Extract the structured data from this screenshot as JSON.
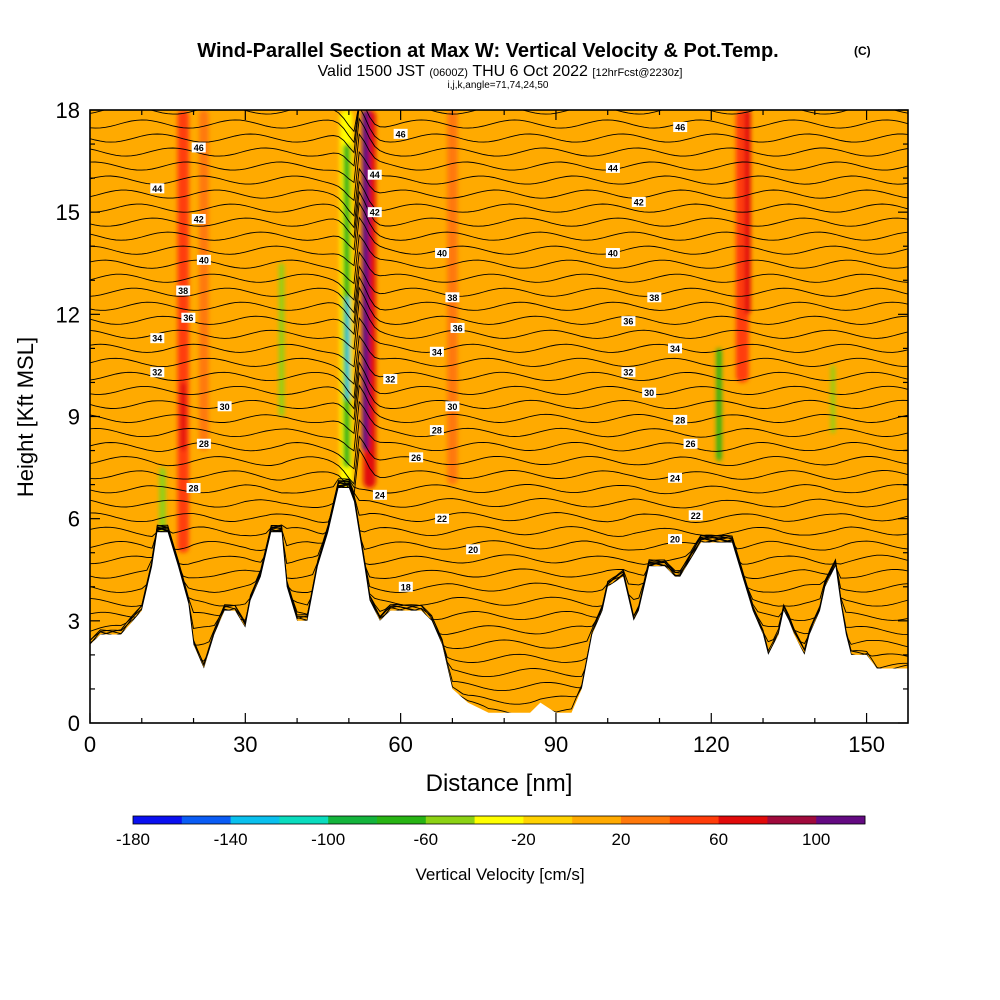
{
  "chart_data": {
    "type": "heatmap",
    "title_main": "Wind-Parallel Section at Max W: Vertical Velocity & Pot.Temp.",
    "title_mark": "(C)",
    "subtitle_valid": "Valid 1500 JST",
    "subtitle_utc": "(0600Z)",
    "subtitle_date": "THU 6 Oct 2022",
    "subtitle_fcst": "[12hrFcst@2230z]",
    "subtitle_ijk": "i,j,k,angle=71,74,24,50",
    "xlabel": "Distance [nm]",
    "ylabel": "Height [Kft MSL]",
    "xlim": [
      0,
      158
    ],
    "ylim": [
      0,
      18
    ],
    "xticks": [
      0,
      30,
      60,
      90,
      120,
      150
    ],
    "yticks": [
      0,
      3,
      6,
      9,
      12,
      15,
      18
    ],
    "colorbar": {
      "label": "Vertical Velocity [cm/s]",
      "min": -180,
      "max": 120,
      "step": 20,
      "tick_labels": [
        -180,
        -140,
        -100,
        -60,
        -20,
        20,
        60,
        100
      ],
      "colors": [
        "#0a10f0",
        "#0a5cf5",
        "#0ac0ee",
        "#0adcbe",
        "#14b43c",
        "#28b414",
        "#8cd214",
        "#ffff00",
        "#ffd200",
        "#ffaa00",
        "#ff780a",
        "#ff3c0a",
        "#e10a0a",
        "#a00a3c",
        "#640a82"
      ]
    },
    "background_value": 10,
    "terrain_kft": [
      [
        0,
        2.3
      ],
      [
        2,
        2.6
      ],
      [
        6,
        2.6
      ],
      [
        10,
        3.3
      ],
      [
        12,
        4.6
      ],
      [
        13,
        5.6
      ],
      [
        15,
        5.6
      ],
      [
        17,
        4.6
      ],
      [
        19,
        3.5
      ],
      [
        20,
        2.3
      ],
      [
        22,
        1.6
      ],
      [
        24,
        2.6
      ],
      [
        26,
        3.3
      ],
      [
        28,
        3.3
      ],
      [
        30,
        2.8
      ],
      [
        31,
        3.6
      ],
      [
        33,
        4.3
      ],
      [
        35,
        5.6
      ],
      [
        37,
        5.6
      ],
      [
        38,
        4.0
      ],
      [
        40,
        3.0
      ],
      [
        42,
        3.0
      ],
      [
        44,
        4.6
      ],
      [
        46,
        5.6
      ],
      [
        48,
        6.9
      ],
      [
        50,
        6.9
      ],
      [
        51,
        6.5
      ],
      [
        53,
        4.6
      ],
      [
        54,
        3.6
      ],
      [
        56,
        3.0
      ],
      [
        58,
        3.3
      ],
      [
        64,
        3.3
      ],
      [
        66,
        3.0
      ],
      [
        68,
        2.3
      ],
      [
        70,
        1.0
      ],
      [
        73,
        0.6
      ],
      [
        77,
        0.3
      ],
      [
        85,
        0.3
      ],
      [
        87,
        0.6
      ],
      [
        90,
        0.3
      ],
      [
        93,
        0.3
      ],
      [
        95,
        1.0
      ],
      [
        97,
        2.6
      ],
      [
        99,
        3.3
      ],
      [
        100,
        4.0
      ],
      [
        103,
        4.3
      ],
      [
        105,
        3.0
      ],
      [
        106,
        3.3
      ],
      [
        108,
        4.6
      ],
      [
        111,
        4.6
      ],
      [
        113,
        4.3
      ],
      [
        114,
        4.3
      ],
      [
        118,
        5.3
      ],
      [
        124,
        5.3
      ],
      [
        126,
        4.3
      ],
      [
        128,
        3.3
      ],
      [
        130,
        2.6
      ],
      [
        131,
        2.0
      ],
      [
        133,
        2.6
      ],
      [
        134,
        3.3
      ],
      [
        135,
        3.0
      ],
      [
        136,
        2.6
      ],
      [
        138,
        2.0
      ],
      [
        139,
        2.6
      ],
      [
        141,
        3.3
      ],
      [
        142,
        4.0
      ],
      [
        144,
        4.6
      ],
      [
        145,
        3.5
      ],
      [
        146,
        2.6
      ],
      [
        147,
        2.0
      ],
      [
        150,
        2.0
      ],
      [
        152,
        1.6
      ],
      [
        158,
        1.6
      ]
    ],
    "updraft_bands": [
      {
        "x": 18,
        "y_bottom": 5,
        "y_top": 18,
        "width_nm": 2.2,
        "value": 40
      },
      {
        "x": 18,
        "y_bottom": 8,
        "y_top": 10,
        "width_nm": 1.0,
        "value": 60
      },
      {
        "x": 22,
        "y_bottom": 8,
        "y_top": 18,
        "width_nm": 1.8,
        "value": 30
      },
      {
        "x": 126,
        "y_bottom": 10,
        "y_top": 18,
        "width_nm": 2.5,
        "value": 40
      },
      {
        "x": 127,
        "y_bottom": 12,
        "y_top": 18,
        "width_nm": 1.2,
        "value": 60
      },
      {
        "x": 70,
        "y_bottom": 7,
        "y_top": 18,
        "width_nm": 2.0,
        "value": 30
      },
      {
        "x": 54,
        "y_bottom": 6.9,
        "y_top": 18,
        "width_nm": 2.4,
        "value": 70
      },
      {
        "x": 53.2,
        "y_bottom": 8,
        "y_top": 18,
        "width_nm": 1.3,
        "value": 100
      },
      {
        "x": 53.6,
        "y_bottom": 10,
        "y_top": 18,
        "width_nm": 0.7,
        "value": 120
      }
    ],
    "downdraft_bands": [
      {
        "x": 49.5,
        "y_bottom": 6.9,
        "y_top": 18,
        "width_nm": 2.4,
        "value": -40
      },
      {
        "x": 49.6,
        "y_bottom": 7.5,
        "y_top": 17,
        "width_nm": 1.4,
        "value": -80
      },
      {
        "x": 49.8,
        "y_bottom": 9.5,
        "y_top": 12.5,
        "width_nm": 0.7,
        "value": -130
      },
      {
        "x": 37,
        "y_bottom": 9,
        "y_top": 13.5,
        "width_nm": 1.0,
        "value": -50
      },
      {
        "x": 14,
        "y_bottom": 5.6,
        "y_top": 7.5,
        "width_nm": 1.2,
        "value": -60
      },
      {
        "x": 121.5,
        "y_bottom": 7.7,
        "y_top": 11,
        "width_nm": 1.0,
        "value": -70
      },
      {
        "x": 143.5,
        "y_bottom": 8.5,
        "y_top": 10.5,
        "width_nm": 0.8,
        "value": -60
      }
    ],
    "theta_contour_labels": [
      {
        "x": 21,
        "y": 16.9,
        "text": "46"
      },
      {
        "x": 60,
        "y": 17.3,
        "text": "46"
      },
      {
        "x": 114,
        "y": 17.5,
        "text": "46"
      },
      {
        "x": 13,
        "y": 15.7,
        "text": "44"
      },
      {
        "x": 55,
        "y": 16.1,
        "text": "44"
      },
      {
        "x": 101,
        "y": 16.3,
        "text": "44"
      },
      {
        "x": 21,
        "y": 14.8,
        "text": "42"
      },
      {
        "x": 55,
        "y": 15.0,
        "text": "42"
      },
      {
        "x": 106,
        "y": 15.3,
        "text": "42"
      },
      {
        "x": 22,
        "y": 13.6,
        "text": "40"
      },
      {
        "x": 68,
        "y": 13.8,
        "text": "40"
      },
      {
        "x": 101,
        "y": 13.8,
        "text": "40"
      },
      {
        "x": 18,
        "y": 12.7,
        "text": "38"
      },
      {
        "x": 70,
        "y": 12.5,
        "text": "38"
      },
      {
        "x": 109,
        "y": 12.5,
        "text": "38"
      },
      {
        "x": 19,
        "y": 11.9,
        "text": "36"
      },
      {
        "x": 71,
        "y": 11.6,
        "text": "36"
      },
      {
        "x": 104,
        "y": 11.8,
        "text": "36"
      },
      {
        "x": 13,
        "y": 11.3,
        "text": "34"
      },
      {
        "x": 67,
        "y": 10.9,
        "text": "34"
      },
      {
        "x": 113,
        "y": 11.0,
        "text": "34"
      },
      {
        "x": 13,
        "y": 10.3,
        "text": "32"
      },
      {
        "x": 58,
        "y": 10.1,
        "text": "32"
      },
      {
        "x": 104,
        "y": 10.3,
        "text": "32"
      },
      {
        "x": 26,
        "y": 9.3,
        "text": "30"
      },
      {
        "x": 70,
        "y": 9.3,
        "text": "30"
      },
      {
        "x": 108,
        "y": 9.7,
        "text": "30"
      },
      {
        "x": 22,
        "y": 8.2,
        "text": "28"
      },
      {
        "x": 67,
        "y": 8.6,
        "text": "28"
      },
      {
        "x": 114,
        "y": 8.9,
        "text": "28"
      },
      {
        "x": 63,
        "y": 7.8,
        "text": "26"
      },
      {
        "x": 116,
        "y": 8.2,
        "text": "26"
      },
      {
        "x": 20,
        "y": 6.9,
        "text": "28"
      },
      {
        "x": 56,
        "y": 6.7,
        "text": "24"
      },
      {
        "x": 113,
        "y": 7.2,
        "text": "24"
      },
      {
        "x": 68,
        "y": 6.0,
        "text": "22"
      },
      {
        "x": 117,
        "y": 6.1,
        "text": "22"
      },
      {
        "x": 74,
        "y": 5.1,
        "text": "20"
      },
      {
        "x": 113,
        "y": 5.4,
        "text": "20"
      },
      {
        "x": 61,
        "y": 4.0,
        "text": "18"
      }
    ]
  }
}
